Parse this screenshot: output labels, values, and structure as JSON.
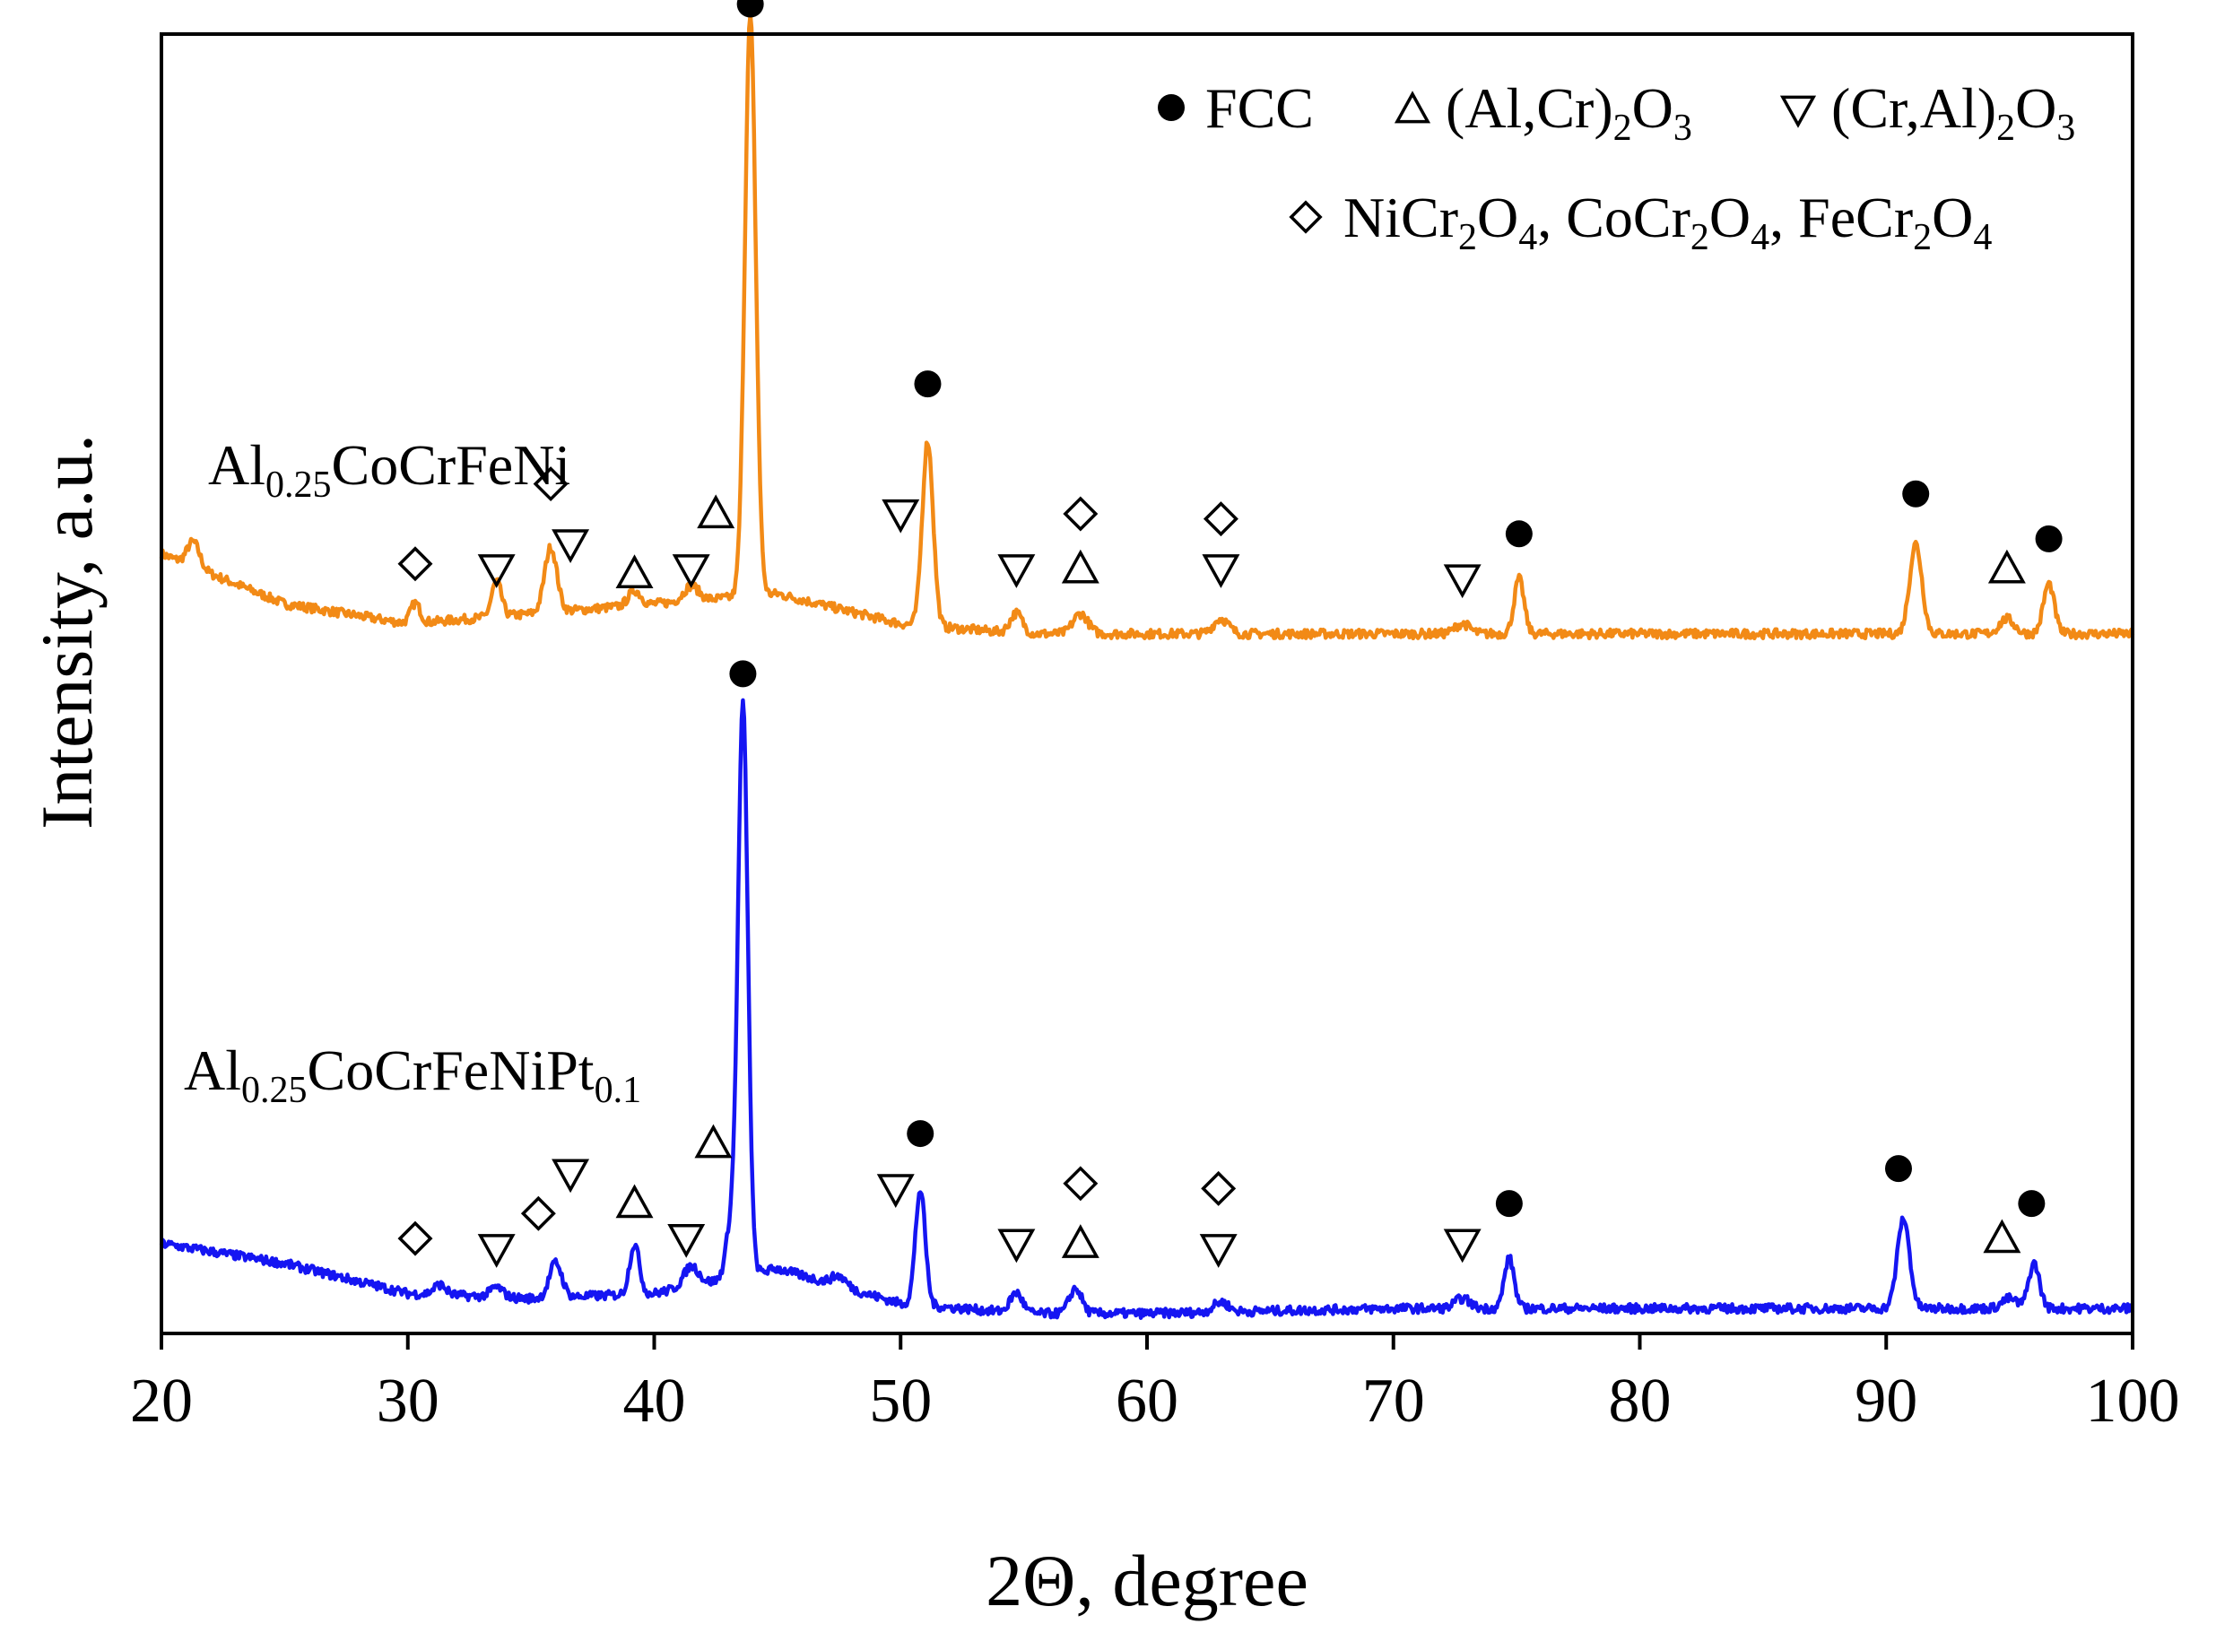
{
  "chart_data": {
    "type": "line",
    "title": "",
    "xlabel": "2Θ, degree",
    "ylabel": "Intensity, a.u.",
    "xlim": [
      20,
      100
    ],
    "ylim": [
      0,
      1.3
    ],
    "grid": false,
    "x_ticks": [
      20,
      30,
      40,
      50,
      60,
      70,
      80,
      90,
      100
    ],
    "x_tick_labels": [
      "20",
      "30",
      "40",
      "50",
      "60",
      "70",
      "80",
      "90",
      "100"
    ],
    "legend": {
      "placement": "top-right",
      "entries": [
        {
          "symbol": "filled-circle",
          "parts": [
            {
              "t": "FCC"
            }
          ]
        },
        {
          "symbol": "triangle-up",
          "parts": [
            {
              "t": "(Al,Cr)"
            },
            {
              "t": "2",
              "sub": true
            },
            {
              "t": "O"
            },
            {
              "t": "3",
              "sub": true
            }
          ]
        },
        {
          "symbol": "triangle-down",
          "parts": [
            {
              "t": "(Cr,Al)"
            },
            {
              "t": "2",
              "sub": true
            },
            {
              "t": "O"
            },
            {
              "t": "3",
              "sub": true
            }
          ]
        },
        {
          "symbol": "diamond",
          "parts": [
            {
              "t": "NiCr"
            },
            {
              "t": "2",
              "sub": true
            },
            {
              "t": "O"
            },
            {
              "t": "4",
              "sub": true
            },
            {
              "t": ", CoCr"
            },
            {
              "t": "2",
              "sub": true
            },
            {
              "t": "O"
            },
            {
              "t": "4",
              "sub": true
            },
            {
              "t": ", FeCr"
            },
            {
              "t": "2",
              "sub": true
            },
            {
              "t": "O"
            },
            {
              "t": "4",
              "sub": true
            }
          ]
        }
      ]
    },
    "series": [
      {
        "name": "Al0.25CoCrFeNi",
        "label_parts": [
          {
            "t": "Al"
          },
          {
            "t": "0.25",
            "sub": true
          },
          {
            "t": "CoCrFeNi"
          }
        ],
        "color": "#F28A16",
        "baseline": {
          "x": [
            20,
            25,
            30,
            35,
            40,
            45,
            50,
            55,
            60,
            70,
            80,
            90,
            100
          ],
          "y": [
            0.78,
            0.73,
            0.71,
            0.72,
            0.73,
            0.74,
            0.71,
            0.7,
            0.7,
            0.7,
            0.7,
            0.7,
            0.7
          ]
        },
        "peaks": [
          {
            "x": 21.3,
            "h": 0.025,
            "w": 0.25
          },
          {
            "x": 30.3,
            "h": 0.02,
            "w": 0.2
          },
          {
            "x": 33.6,
            "h": 0.035,
            "w": 0.2
          },
          {
            "x": 35.8,
            "h": 0.065,
            "w": 0.25
          },
          {
            "x": 39.2,
            "h": 0.015,
            "w": 0.25
          },
          {
            "x": 41.5,
            "h": 0.015,
            "w": 0.3
          },
          {
            "x": 43.9,
            "h": 0.58,
            "w": 0.22
          },
          {
            "x": 51.1,
            "h": 0.185,
            "w": 0.22
          },
          {
            "x": 54.7,
            "h": 0.02,
            "w": 0.25
          },
          {
            "x": 57.3,
            "h": 0.02,
            "w": 0.3
          },
          {
            "x": 63.0,
            "h": 0.015,
            "w": 0.3
          },
          {
            "x": 72.8,
            "h": 0.01,
            "w": 0.3
          },
          {
            "x": 75.1,
            "h": 0.055,
            "w": 0.2
          },
          {
            "x": 91.2,
            "h": 0.09,
            "w": 0.25
          },
          {
            "x": 94.9,
            "h": 0.015,
            "w": 0.3
          },
          {
            "x": 96.6,
            "h": 0.05,
            "w": 0.22
          }
        ],
        "markers": [
          {
            "symbol": "diamond",
            "x": 30.3,
            "y": 0.77
          },
          {
            "symbol": "triangle-down",
            "x": 33.6,
            "y": 0.765
          },
          {
            "symbol": "diamond",
            "x": 35.8,
            "y": 0.85
          },
          {
            "symbol": "triangle-down",
            "x": 36.6,
            "y": 0.79
          },
          {
            "symbol": "triangle-up",
            "x": 39.2,
            "y": 0.76
          },
          {
            "symbol": "triangle-down",
            "x": 41.5,
            "y": 0.765
          },
          {
            "symbol": "triangle-up",
            "x": 42.5,
            "y": 0.82
          },
          {
            "symbol": "filled-circle",
            "x": 43.9,
            "y": 1.33
          },
          {
            "symbol": "triangle-down",
            "x": 50.0,
            "y": 0.82
          },
          {
            "symbol": "filled-circle",
            "x": 51.1,
            "y": 0.95
          },
          {
            "symbol": "triangle-down",
            "x": 54.7,
            "y": 0.765
          },
          {
            "symbol": "diamond",
            "x": 57.3,
            "y": 0.82
          },
          {
            "symbol": "triangle-up",
            "x": 57.3,
            "y": 0.765
          },
          {
            "symbol": "diamond",
            "x": 63.0,
            "y": 0.815
          },
          {
            "symbol": "triangle-down",
            "x": 63.0,
            "y": 0.765
          },
          {
            "symbol": "triangle-down",
            "x": 72.8,
            "y": 0.755
          },
          {
            "symbol": "filled-circle",
            "x": 75.1,
            "y": 0.8
          },
          {
            "symbol": "filled-circle",
            "x": 91.2,
            "y": 0.84
          },
          {
            "symbol": "triangle-up",
            "x": 94.9,
            "y": 0.765
          },
          {
            "symbol": "filled-circle",
            "x": 96.6,
            "y": 0.795
          }
        ]
      },
      {
        "name": "Al0.25CoCrFeNiPt0.1",
        "label_parts": [
          {
            "t": "Al"
          },
          {
            "t": "0.25",
            "sub": true
          },
          {
            "t": "CoCrFeNiPt"
          },
          {
            "t": "0.1",
            "sub": true
          }
        ],
        "color": "#1515F2",
        "baseline": {
          "x": [
            20,
            25,
            30,
            35,
            40,
            45,
            50,
            55,
            60,
            70,
            80,
            90,
            100
          ],
          "y": [
            0.09,
            0.07,
            0.04,
            0.035,
            0.04,
            0.065,
            0.03,
            0.02,
            0.02,
            0.025,
            0.025,
            0.025,
            0.025
          ]
        },
        "peaks": [
          {
            "x": 31.3,
            "h": 0.01,
            "w": 0.25
          },
          {
            "x": 33.6,
            "h": 0.01,
            "w": 0.25
          },
          {
            "x": 36.0,
            "h": 0.035,
            "w": 0.25
          },
          {
            "x": 39.2,
            "h": 0.05,
            "w": 0.2
          },
          {
            "x": 41.5,
            "h": 0.02,
            "w": 0.3
          },
          {
            "x": 43.1,
            "h": 0.05,
            "w": 0.2
          },
          {
            "x": 43.6,
            "h": 0.57,
            "w": 0.2
          },
          {
            "x": 47.5,
            "h": 0.01,
            "w": 0.3
          },
          {
            "x": 50.8,
            "h": 0.115,
            "w": 0.2
          },
          {
            "x": 54.7,
            "h": 0.02,
            "w": 0.25
          },
          {
            "x": 57.1,
            "h": 0.025,
            "w": 0.25
          },
          {
            "x": 63.0,
            "h": 0.01,
            "w": 0.3
          },
          {
            "x": 72.8,
            "h": 0.01,
            "w": 0.3
          },
          {
            "x": 74.7,
            "h": 0.05,
            "w": 0.2
          },
          {
            "x": 90.7,
            "h": 0.09,
            "w": 0.25
          },
          {
            "x": 95.0,
            "h": 0.01,
            "w": 0.3
          },
          {
            "x": 96.0,
            "h": 0.045,
            "w": 0.22
          }
        ],
        "markers": [
          {
            "symbol": "diamond",
            "x": 30.3,
            "y": 0.095
          },
          {
            "symbol": "triangle-down",
            "x": 33.6,
            "y": 0.085
          },
          {
            "symbol": "diamond",
            "x": 35.3,
            "y": 0.12
          },
          {
            "symbol": "triangle-down",
            "x": 36.6,
            "y": 0.16
          },
          {
            "symbol": "triangle-up",
            "x": 39.2,
            "y": 0.13
          },
          {
            "symbol": "triangle-down",
            "x": 41.3,
            "y": 0.095
          },
          {
            "symbol": "triangle-up",
            "x": 42.4,
            "y": 0.19
          },
          {
            "symbol": "filled-circle",
            "x": 43.6,
            "y": 0.66
          },
          {
            "symbol": "triangle-down",
            "x": 49.8,
            "y": 0.145
          },
          {
            "symbol": "filled-circle",
            "x": 50.8,
            "y": 0.2
          },
          {
            "symbol": "triangle-down",
            "x": 54.7,
            "y": 0.09
          },
          {
            "symbol": "diamond",
            "x": 57.3,
            "y": 0.15
          },
          {
            "symbol": "triangle-up",
            "x": 57.3,
            "y": 0.09
          },
          {
            "symbol": "diamond",
            "x": 62.9,
            "y": 0.145
          },
          {
            "symbol": "triangle-down",
            "x": 62.9,
            "y": 0.085
          },
          {
            "symbol": "triangle-down",
            "x": 72.8,
            "y": 0.09
          },
          {
            "symbol": "filled-circle",
            "x": 74.7,
            "y": 0.13
          },
          {
            "symbol": "filled-circle",
            "x": 90.5,
            "y": 0.165
          },
          {
            "symbol": "triangle-up",
            "x": 94.7,
            "y": 0.095
          },
          {
            "symbol": "filled-circle",
            "x": 95.9,
            "y": 0.13
          }
        ]
      }
    ]
  }
}
